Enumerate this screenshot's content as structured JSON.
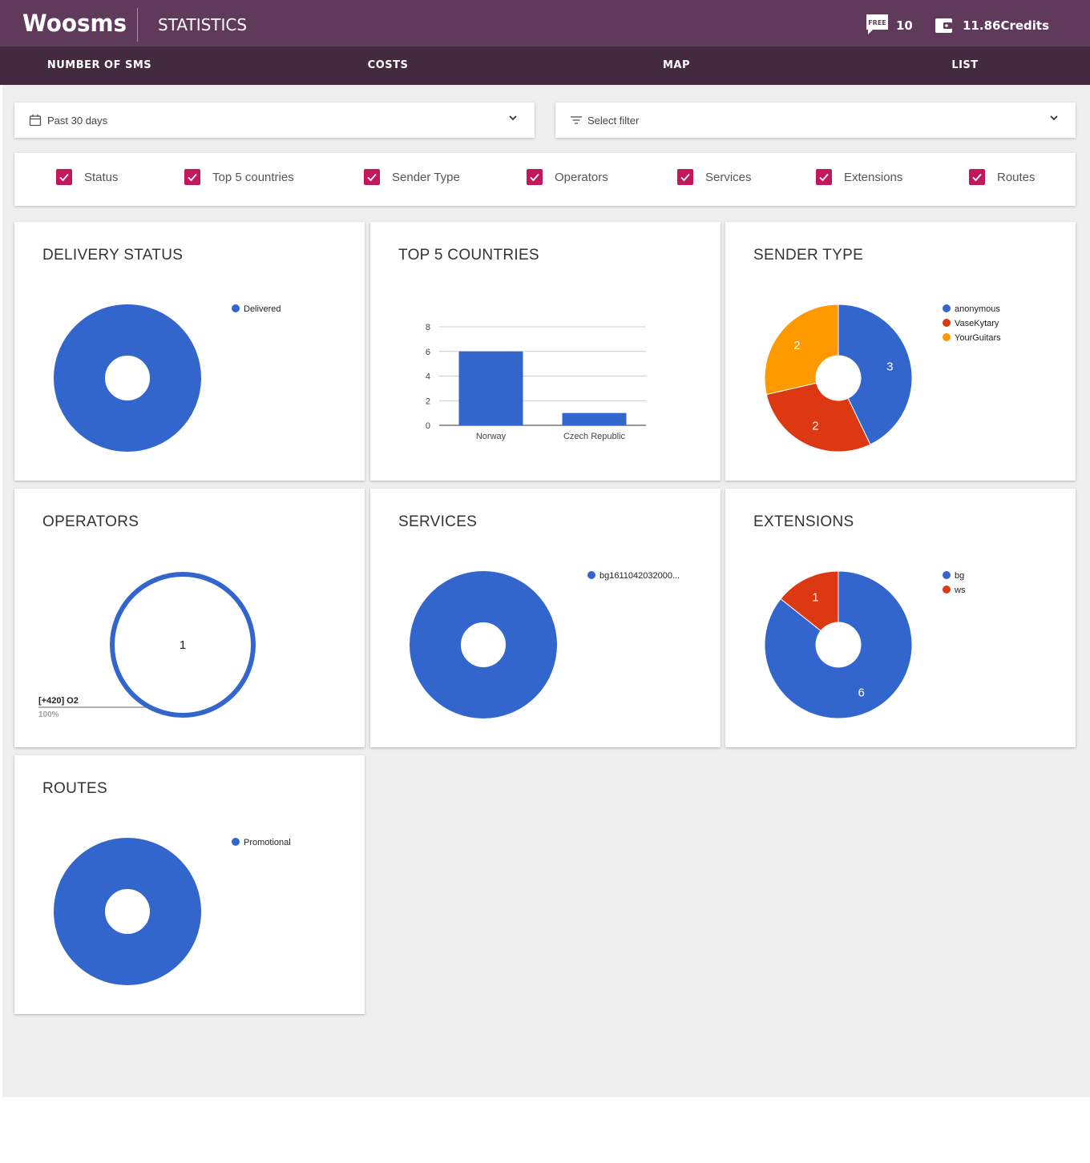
{
  "header": {
    "logo": "Woosms",
    "page_title": "STATISTICS",
    "free_badge": "FREE",
    "free_sms_count": "10",
    "credits": "11.86Credits"
  },
  "nav": {
    "tabs": [
      {
        "label": "NUMBER OF SMS"
      },
      {
        "label": "COSTS"
      },
      {
        "label": "MAP"
      },
      {
        "label": "LIST"
      }
    ]
  },
  "filters": {
    "period": "Past 30 days",
    "filter_placeholder": "Select filter"
  },
  "toggles": [
    {
      "label": "Status",
      "checked": true
    },
    {
      "label": "Top 5 countries",
      "checked": true
    },
    {
      "label": "Sender Type",
      "checked": true
    },
    {
      "label": "Operators",
      "checked": true
    },
    {
      "label": "Services",
      "checked": true
    },
    {
      "label": "Extensions",
      "checked": true
    },
    {
      "label": "Routes",
      "checked": true
    }
  ],
  "cards": {
    "delivery_status": "DELIVERY STATUS",
    "top5_countries": "TOP 5 COUNTRIES",
    "sender_type": "SENDER TYPE",
    "operators": "OPERATORS",
    "services": "SERVICES",
    "extensions": "EXTENSIONS",
    "routes": "ROUTES"
  },
  "colors": {
    "header_bg": "#603a5b",
    "nav_bg": "#432a3e",
    "checkbox": "#c2185b",
    "blue": "#3366cc",
    "red": "#dc3912",
    "orange": "#ff9900"
  },
  "chart_data": [
    {
      "id": "delivery_status",
      "type": "pie",
      "title": "DELIVERY STATUS",
      "series": [
        {
          "name": "Delivered",
          "value": 1,
          "color": "#3366cc"
        }
      ],
      "legend": "right"
    },
    {
      "id": "top5_countries",
      "type": "bar",
      "title": "TOP 5 COUNTRIES",
      "categories": [
        "Norway",
        "Czech Republic"
      ],
      "values": [
        6,
        1
      ],
      "ylim": [
        0,
        8
      ],
      "yticks": [
        0,
        2,
        4,
        6,
        8
      ],
      "grid": true
    },
    {
      "id": "sender_type",
      "type": "pie",
      "title": "SENDER TYPE",
      "series": [
        {
          "name": "anonymous",
          "value": 3,
          "color": "#3366cc"
        },
        {
          "name": "VaseKytary",
          "value": 2,
          "color": "#dc3912"
        },
        {
          "name": "YourGuitars",
          "value": 2,
          "color": "#ff9900"
        }
      ],
      "legend": "right"
    },
    {
      "id": "operators",
      "type": "pie",
      "title": "OPERATORS",
      "series": [
        {
          "name": "[+420] O2",
          "value": 1,
          "color": "#3366cc"
        }
      ],
      "center_label": "1",
      "callout_label": "[+420] O2",
      "callout_value": "100%",
      "legend": "labeled"
    },
    {
      "id": "services",
      "type": "pie",
      "title": "SERVICES",
      "series": [
        {
          "name": "bg1611042032000...",
          "value": 1,
          "color": "#3366cc"
        }
      ],
      "legend": "right"
    },
    {
      "id": "extensions",
      "type": "pie",
      "title": "EXTENSIONS",
      "series": [
        {
          "name": "bg",
          "value": 6,
          "color": "#3366cc"
        },
        {
          "name": "ws",
          "value": 1,
          "color": "#dc3912"
        }
      ],
      "legend": "right"
    },
    {
      "id": "routes",
      "type": "pie",
      "title": "ROUTES",
      "series": [
        {
          "name": "Promotional",
          "value": 1,
          "color": "#3366cc"
        }
      ],
      "legend": "right"
    }
  ]
}
